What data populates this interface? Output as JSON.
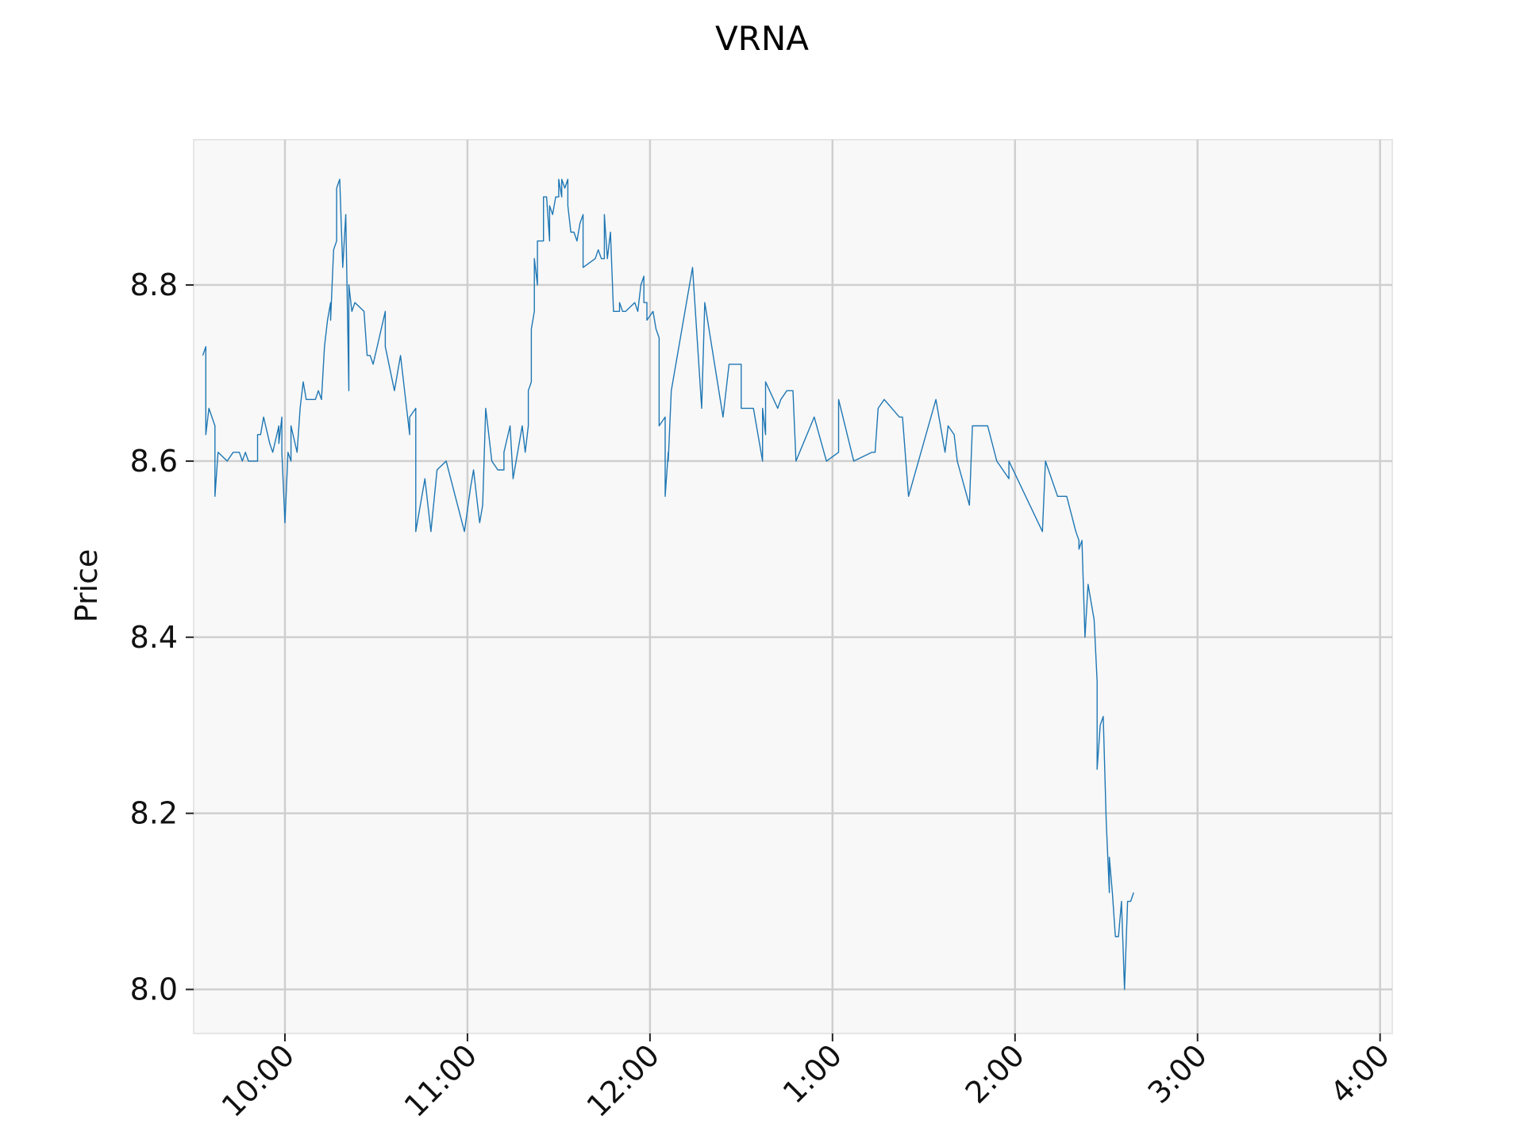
{
  "chart_data": {
    "type": "line",
    "title": "VRNA",
    "xlabel": "",
    "ylabel": "Price",
    "grid": true,
    "colors": {
      "line": "#1f77b4",
      "plot_bg": "#f8f8f8",
      "grid": "#cfcfcf",
      "frame": "#e6e6e6"
    },
    "xlim": [
      "9:30",
      "4:04"
    ],
    "ylim": [
      7.95,
      8.965
    ],
    "x_ticks": [
      {
        "t": "10:00",
        "label": "10:00"
      },
      {
        "t": "11:00",
        "label": "11:00"
      },
      {
        "t": "12:00",
        "label": "12:00"
      },
      {
        "t": "1:00",
        "label": "1:00"
      },
      {
        "t": "2:00",
        "label": "2:00"
      },
      {
        "t": "3:00",
        "label": "3:00"
      },
      {
        "t": "4:00",
        "label": "4:00"
      }
    ],
    "y_ticks": [
      {
        "v": 8.0,
        "label": "8.0"
      },
      {
        "v": 8.2,
        "label": "8.2"
      },
      {
        "v": 8.4,
        "label": "8.4"
      },
      {
        "v": 8.6,
        "label": "8.6"
      },
      {
        "v": 8.8,
        "label": "8.8"
      }
    ],
    "series": [
      {
        "points": [
          [
            "9:33",
            8.72
          ],
          [
            "9:34",
            8.73
          ],
          [
            "9:34",
            8.63
          ],
          [
            "9:35",
            8.66
          ],
          [
            "9:37",
            8.64
          ],
          [
            "9:37",
            8.56
          ],
          [
            "9:38",
            8.61
          ],
          [
            "9:41",
            8.6
          ],
          [
            "9:43",
            8.61
          ],
          [
            "9:45",
            8.61
          ],
          [
            "9:46",
            8.6
          ],
          [
            "9:47",
            8.61
          ],
          [
            "9:48",
            8.6
          ],
          [
            "9:50",
            8.6
          ],
          [
            "9:51",
            8.6
          ],
          [
            "9:51",
            8.63
          ],
          [
            "9:52",
            8.63
          ],
          [
            "9:53",
            8.65
          ],
          [
            "9:55",
            8.62
          ],
          [
            "9:56",
            8.61
          ],
          [
            "9:58",
            8.64
          ],
          [
            "9:58",
            8.62
          ],
          [
            "9:59",
            8.65
          ],
          [
            "9:59",
            8.61
          ],
          [
            "10:00",
            8.53
          ],
          [
            "10:01",
            8.61
          ],
          [
            "10:02",
            8.6
          ],
          [
            "10:02",
            8.64
          ],
          [
            "10:04",
            8.61
          ],
          [
            "10:05",
            8.66
          ],
          [
            "10:06",
            8.69
          ],
          [
            "10:07",
            8.67
          ],
          [
            "10:10",
            8.67
          ],
          [
            "10:11",
            8.68
          ],
          [
            "10:12",
            8.67
          ],
          [
            "10:13",
            8.73
          ],
          [
            "10:14",
            8.76
          ],
          [
            "10:15",
            8.78
          ],
          [
            "10:15",
            8.76
          ],
          [
            "10:16",
            8.84
          ],
          [
            "10:17",
            8.85
          ],
          [
            "10:17",
            8.91
          ],
          [
            "10:18",
            8.92
          ],
          [
            "10:19",
            8.82
          ],
          [
            "10:20",
            8.88
          ],
          [
            "10:21",
            8.68
          ],
          [
            "10:21",
            8.8
          ],
          [
            "10:22",
            8.77
          ],
          [
            "10:23",
            8.78
          ],
          [
            "10:26",
            8.77
          ],
          [
            "10:27",
            8.72
          ],
          [
            "10:28",
            8.72
          ],
          [
            "10:29",
            8.71
          ],
          [
            "10:33",
            8.77
          ],
          [
            "10:33",
            8.73
          ],
          [
            "10:36",
            8.68
          ],
          [
            "10:38",
            8.72
          ],
          [
            "10:41",
            8.63
          ],
          [
            "10:41",
            8.65
          ],
          [
            "10:43",
            8.66
          ],
          [
            "10:43",
            8.52
          ],
          [
            "10:46",
            8.58
          ],
          [
            "10:47",
            8.55
          ],
          [
            "10:48",
            8.52
          ],
          [
            "10:50",
            8.59
          ],
          [
            "10:53",
            8.6
          ],
          [
            "10:59",
            8.52
          ],
          [
            "11:01",
            8.57
          ],
          [
            "11:02",
            8.59
          ],
          [
            "11:03",
            8.56
          ],
          [
            "11:04",
            8.53
          ],
          [
            "11:05",
            8.55
          ],
          [
            "11:06",
            8.66
          ],
          [
            "11:07",
            8.63
          ],
          [
            "11:08",
            8.6
          ],
          [
            "11:10",
            8.59
          ],
          [
            "11:12",
            8.59
          ],
          [
            "11:12",
            8.61
          ],
          [
            "11:14",
            8.64
          ],
          [
            "11:15",
            8.58
          ],
          [
            "11:18",
            8.64
          ],
          [
            "11:19",
            8.61
          ],
          [
            "11:20",
            8.64
          ],
          [
            "11:20",
            8.68
          ],
          [
            "11:21",
            8.69
          ],
          [
            "11:21",
            8.75
          ],
          [
            "11:22",
            8.77
          ],
          [
            "11:22",
            8.83
          ],
          [
            "11:23",
            8.8
          ],
          [
            "11:23",
            8.85
          ],
          [
            "11:24",
            8.85
          ],
          [
            "11:25",
            8.85
          ],
          [
            "11:25",
            8.9
          ],
          [
            "11:26",
            8.9
          ],
          [
            "11:27",
            8.85
          ],
          [
            "11:27",
            8.89
          ],
          [
            "11:28",
            8.88
          ],
          [
            "11:29",
            8.9
          ],
          [
            "11:30",
            8.9
          ],
          [
            "11:30",
            8.92
          ],
          [
            "11:31",
            8.9
          ],
          [
            "11:31",
            8.92
          ],
          [
            "11:32",
            8.91
          ],
          [
            "11:33",
            8.92
          ],
          [
            "11:33",
            8.89
          ],
          [
            "11:34",
            8.86
          ],
          [
            "11:35",
            8.86
          ],
          [
            "11:36",
            8.85
          ],
          [
            "11:37",
            8.87
          ],
          [
            "11:38",
            8.88
          ],
          [
            "11:38",
            8.82
          ],
          [
            "11:42",
            8.83
          ],
          [
            "11:43",
            8.84
          ],
          [
            "11:44",
            8.83
          ],
          [
            "11:45",
            8.83
          ],
          [
            "11:45",
            8.88
          ],
          [
            "11:46",
            8.83
          ],
          [
            "11:47",
            8.86
          ],
          [
            "11:48",
            8.77
          ],
          [
            "11:50",
            8.77
          ],
          [
            "11:50",
            8.78
          ],
          [
            "11:51",
            8.77
          ],
          [
            "11:52",
            8.77
          ],
          [
            "11:55",
            8.78
          ],
          [
            "11:56",
            8.77
          ],
          [
            "11:57",
            8.8
          ],
          [
            "11:58",
            8.81
          ],
          [
            "11:58",
            8.78
          ],
          [
            "11:59",
            8.78
          ],
          [
            "11:59",
            8.76
          ],
          [
            "12:01",
            8.77
          ],
          [
            "12:02",
            8.75
          ],
          [
            "12:03",
            8.74
          ],
          [
            "12:03",
            8.64
          ],
          [
            "12:05",
            8.65
          ],
          [
            "12:05",
            8.56
          ],
          [
            "12:06",
            8.61
          ],
          [
            "12:06",
            8.6
          ],
          [
            "12:07",
            8.68
          ],
          [
            "12:14",
            8.82
          ],
          [
            "12:17",
            8.66
          ],
          [
            "12:18",
            8.78
          ],
          [
            "12:24",
            8.65
          ],
          [
            "12:26",
            8.71
          ],
          [
            "12:30",
            8.71
          ],
          [
            "12:30",
            8.66
          ],
          [
            "12:34",
            8.66
          ],
          [
            "12:37",
            8.6
          ],
          [
            "12:37",
            8.66
          ],
          [
            "12:38",
            8.63
          ],
          [
            "12:38",
            8.69
          ],
          [
            "12:42",
            8.66
          ],
          [
            "12:43",
            8.67
          ],
          [
            "12:45",
            8.68
          ],
          [
            "12:47",
            8.68
          ],
          [
            "12:48",
            8.6
          ],
          [
            "12:54",
            8.65
          ],
          [
            "12:58",
            8.6
          ],
          [
            "13:02",
            8.61
          ],
          [
            "13:02",
            8.67
          ],
          [
            "13:07",
            8.6
          ],
          [
            "13:13",
            8.61
          ],
          [
            "13:14",
            8.61
          ],
          [
            "13:15",
            8.66
          ],
          [
            "13:17",
            8.67
          ],
          [
            "13:22",
            8.65
          ],
          [
            "13:23",
            8.65
          ],
          [
            "13:25",
            8.56
          ],
          [
            "13:34",
            8.67
          ],
          [
            "13:37",
            8.61
          ],
          [
            "13:38",
            8.64
          ],
          [
            "13:40",
            8.63
          ],
          [
            "13:41",
            8.6
          ],
          [
            "13:45",
            8.55
          ],
          [
            "13:46",
            8.64
          ],
          [
            "13:51",
            8.64
          ],
          [
            "13:54",
            8.6
          ],
          [
            "13:58",
            8.58
          ],
          [
            "13:58",
            8.6
          ],
          [
            "14:09",
            8.52
          ],
          [
            "14:10",
            8.6
          ],
          [
            "14:14",
            8.56
          ],
          [
            "14:17",
            8.56
          ],
          [
            "14:20",
            8.52
          ],
          [
            "14:21",
            8.51
          ],
          [
            "14:21",
            8.5
          ],
          [
            "14:22",
            8.51
          ],
          [
            "14:23",
            8.4
          ],
          [
            "14:24",
            8.46
          ],
          [
            "14:26",
            8.42
          ],
          [
            "14:27",
            8.35
          ],
          [
            "14:27",
            8.25
          ],
          [
            "14:28",
            8.3
          ],
          [
            "14:29",
            8.31
          ],
          [
            "14:30",
            8.19
          ],
          [
            "14:31",
            8.11
          ],
          [
            "14:31",
            8.15
          ],
          [
            "14:32",
            8.11
          ],
          [
            "14:33",
            8.06
          ],
          [
            "14:34",
            8.06
          ],
          [
            "14:35",
            8.1
          ],
          [
            "14:35",
            8.1
          ],
          [
            "14:36",
            8.0
          ],
          [
            "14:37",
            8.1
          ],
          [
            "14:38",
            8.1
          ],
          [
            "14:39",
            8.11
          ]
        ]
      }
    ]
  }
}
